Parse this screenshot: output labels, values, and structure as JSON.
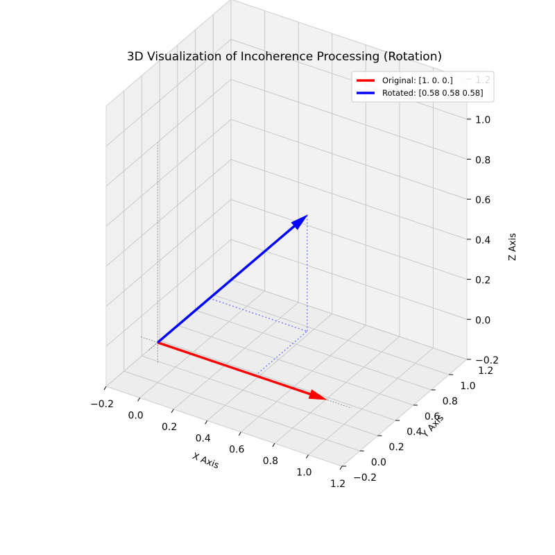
{
  "chart_data": {
    "type": "3d-vector",
    "title": "3D Visualization of Incoherence Processing (Rotation)",
    "xlabel": "X Axis",
    "ylabel": "Y Axis",
    "zlabel": "Z Axis",
    "xlim": [
      -0.2,
      1.2
    ],
    "ylim": [
      -0.2,
      1.2
    ],
    "zlim": [
      -0.2,
      1.2
    ],
    "xticks": [
      "−0.2",
      "0.0",
      "0.2",
      "0.4",
      "0.6",
      "0.8",
      "1.0",
      "1.2"
    ],
    "yticks": [
      "−0.2",
      "0.0",
      "0.2",
      "0.4",
      "0.6",
      "0.8",
      "1.0",
      "1.2"
    ],
    "zticks": [
      "−0.2",
      "0.0",
      "0.2",
      "0.4",
      "0.6",
      "0.8",
      "1.0",
      "1.2"
    ],
    "grid": true,
    "legend_position": "top-right",
    "series": [
      {
        "name": "Original: [1. 0. 0.]",
        "color": "#ff0000",
        "start": [
          0,
          0,
          0
        ],
        "end": [
          1,
          0,
          0
        ]
      },
      {
        "name": "Rotated: [0.58 0.58 0.58]",
        "color": "#0000ff",
        "start": [
          0,
          0,
          0
        ],
        "end": [
          0.58,
          0.58,
          0.58
        ]
      }
    ]
  }
}
